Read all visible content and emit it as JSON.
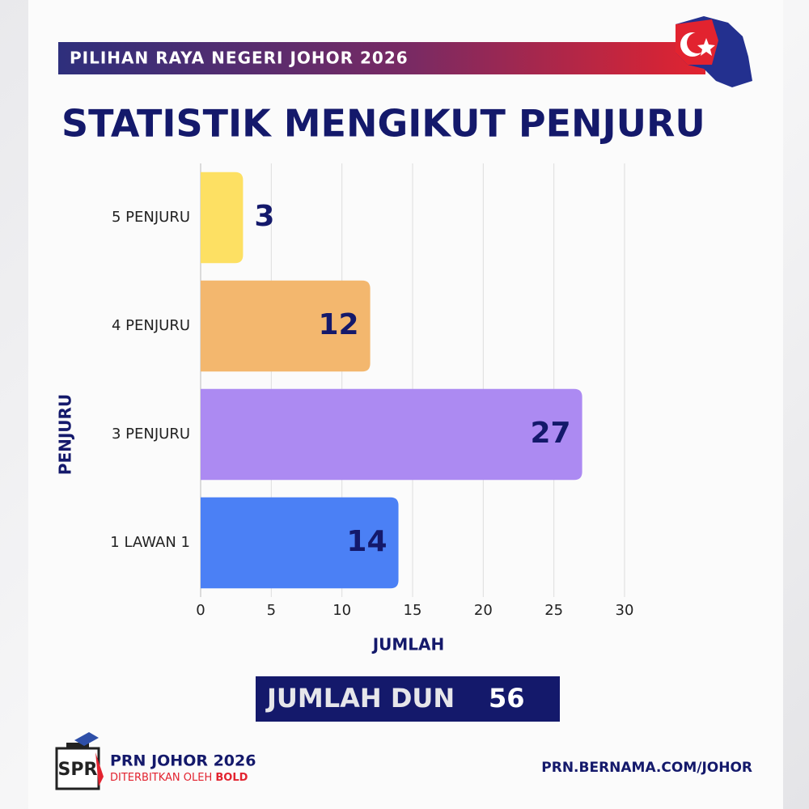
{
  "header": {
    "banner": "PILIHAN RAYA NEGERI JOHOR 2026"
  },
  "chart_data": {
    "type": "bar",
    "orientation": "horizontal",
    "title": "STATISTIK MENGIKUT PENJURU",
    "x_label": "JUMLAH",
    "y_label": "PENJURU",
    "categories": [
      "5 PENJURU",
      "4 PENJURU",
      "3 PENJURU",
      "1 LAWAN 1"
    ],
    "values": [
      3,
      12,
      27,
      14
    ],
    "colors": [
      "#fde063",
      "#f3b76e",
      "#ac8af2",
      "#4b80f5"
    ],
    "xlim": [
      0,
      30
    ],
    "xticks": [
      0,
      5,
      10,
      15,
      20,
      25,
      30
    ],
    "grid": true
  },
  "summary": {
    "label": "JUMLAH DUN",
    "value": 56
  },
  "footer": {
    "logo": "SPR",
    "title": "PRN JOHOR 2026",
    "publisher_prefix": "DITERBITKAN OLEH",
    "publisher": "BOLD",
    "url": "PRN.BERNAMA.COM/JOHOR"
  }
}
